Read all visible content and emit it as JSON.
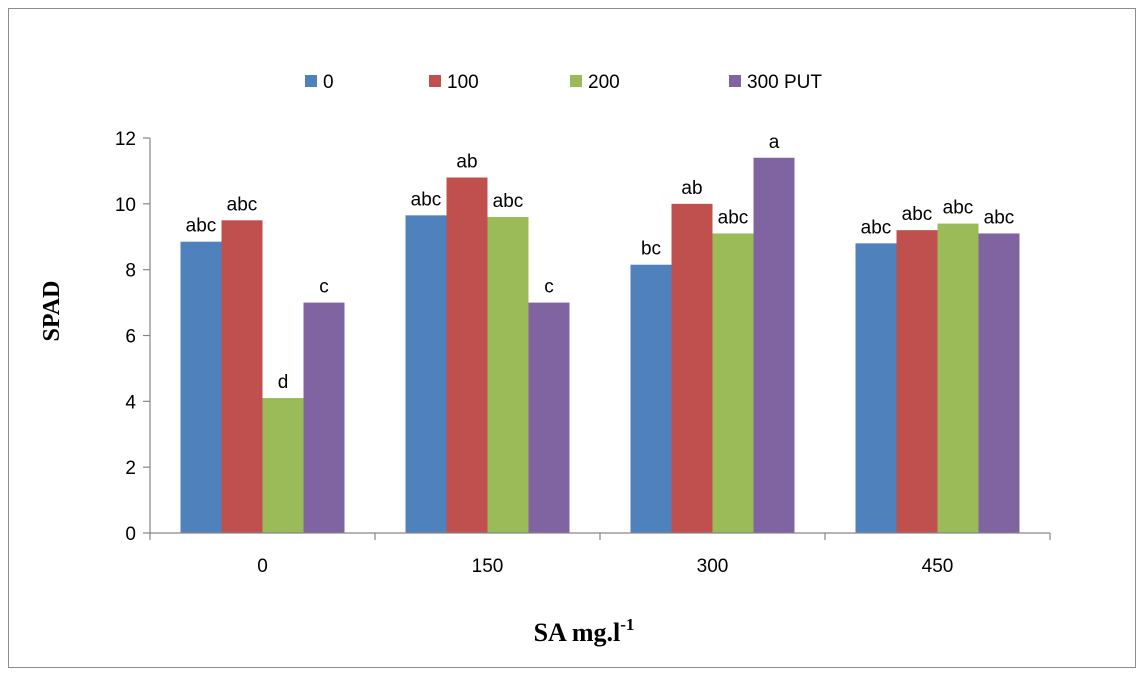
{
  "chart_data": {
    "type": "bar",
    "categories": [
      "0",
      "150",
      "300",
      "450"
    ],
    "series": [
      {
        "name": "0",
        "color": "#4F81BD",
        "values": [
          8.85,
          9.65,
          8.15,
          8.8
        ],
        "labels": [
          "abc",
          "abc",
          "bc",
          "abc"
        ]
      },
      {
        "name": "100",
        "color": "#C0504D",
        "values": [
          9.5,
          10.8,
          10.0,
          9.2
        ],
        "labels": [
          "abc",
          "ab",
          "ab",
          "abc"
        ]
      },
      {
        "name": "200",
        "color": "#9BBB59",
        "values": [
          4.1,
          9.6,
          9.1,
          9.4
        ],
        "labels": [
          "d",
          "abc",
          "abc",
          "abc"
        ]
      },
      {
        "name": "300 PUT",
        "color": "#8064A2",
        "values": [
          7.0,
          7.0,
          11.4,
          9.1
        ],
        "labels": [
          "c",
          "c",
          "a",
          "abc"
        ]
      }
    ],
    "ylabel": "SPAD",
    "xlabel": "SA mg.l",
    "xlabel_superscript": "-1",
    "ylim": [
      0,
      12
    ],
    "yticks": [
      0,
      2,
      4,
      6,
      8,
      10,
      12
    ],
    "grid": false,
    "legend_position": "top"
  }
}
